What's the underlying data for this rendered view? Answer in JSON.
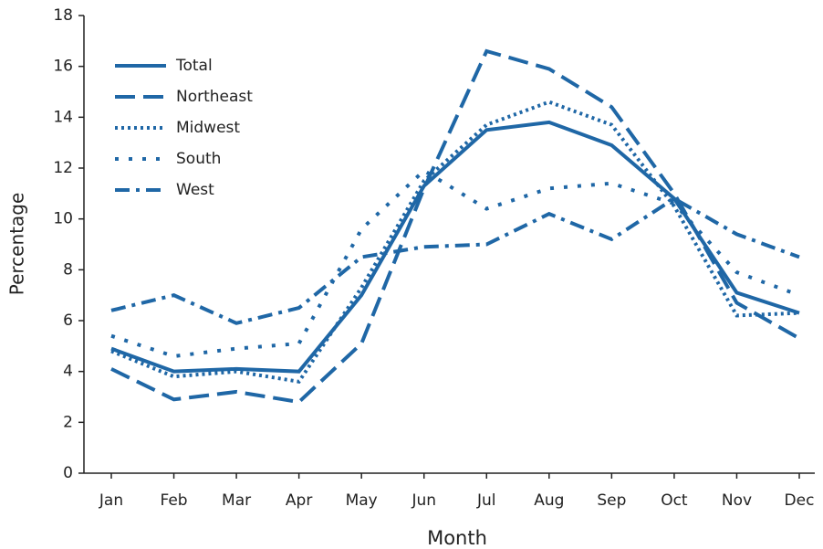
{
  "chart_data": {
    "type": "line",
    "x_label": "Month",
    "y_label": "Percentage",
    "categories": [
      "Jan",
      "Feb",
      "Mar",
      "Apr",
      "May",
      "Jun",
      "Jul",
      "Aug",
      "Sep",
      "Oct",
      "Nov",
      "Dec"
    ],
    "ylim": [
      0,
      18
    ],
    "yticks": [
      0,
      2,
      4,
      6,
      8,
      10,
      12,
      14,
      16,
      18
    ],
    "legend": "upper-left",
    "series": [
      {
        "name": "Total",
        "color": "#1f67a6",
        "style": "solid",
        "values": [
          4.9,
          4.0,
          4.1,
          4.0,
          7.0,
          11.3,
          13.5,
          13.8,
          12.9,
          10.8,
          7.1,
          6.3
        ]
      },
      {
        "name": "Northeast",
        "color": "#1f67a6",
        "style": "dashed",
        "values": [
          4.1,
          2.9,
          3.2,
          2.8,
          5.1,
          11.2,
          16.6,
          15.9,
          14.4,
          11.0,
          6.7,
          5.3
        ]
      },
      {
        "name": "Midwest",
        "color": "#1f67a6",
        "style": "dotted",
        "values": [
          4.8,
          3.8,
          4.0,
          3.6,
          7.3,
          11.5,
          13.7,
          14.6,
          13.7,
          10.5,
          6.2,
          6.3
        ]
      },
      {
        "name": "South",
        "color": "#1f67a6",
        "style": "loose-dotted",
        "values": [
          5.4,
          4.6,
          4.9,
          5.1,
          9.6,
          11.9,
          10.4,
          11.2,
          11.4,
          10.6,
          7.9,
          7.0
        ]
      },
      {
        "name": "West",
        "color": "#1f67a6",
        "style": "dash-dot",
        "values": [
          6.4,
          7.0,
          5.9,
          6.5,
          8.5,
          8.9,
          9.0,
          10.2,
          9.2,
          10.8,
          9.4,
          8.5
        ]
      }
    ]
  }
}
